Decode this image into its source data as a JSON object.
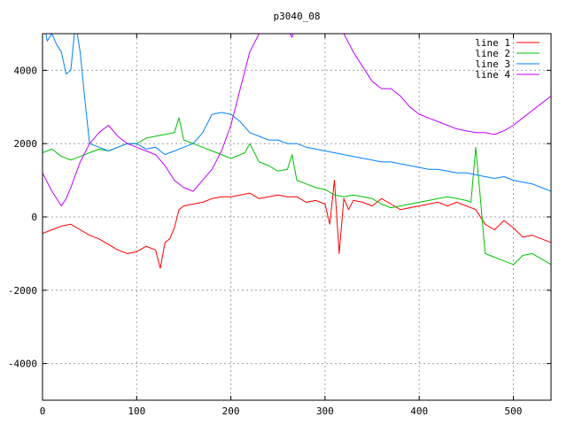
{
  "chart_data": {
    "type": "line",
    "title": "p3040_08",
    "xlim": [
      0,
      540
    ],
    "ylim": [
      -5000,
      5000
    ],
    "grid": true,
    "legend_position": "top-right",
    "x_ticks": [
      0,
      100,
      200,
      300,
      400,
      500
    ],
    "y_ticks": [
      -4000,
      -2000,
      0,
      2000,
      4000
    ],
    "series": [
      {
        "name": "line 1",
        "color": "#ff0000",
        "x": [
          0,
          10,
          20,
          30,
          40,
          50,
          60,
          70,
          80,
          90,
          100,
          110,
          120,
          125,
          130,
          135,
          140,
          145,
          150,
          160,
          170,
          180,
          190,
          200,
          210,
          220,
          230,
          240,
          250,
          260,
          270,
          280,
          290,
          300,
          305,
          310,
          315,
          320,
          325,
          330,
          340,
          350,
          360,
          370,
          380,
          390,
          400,
          410,
          420,
          430,
          440,
          450,
          460,
          470,
          480,
          490,
          500,
          510,
          520,
          530,
          540
        ],
        "y": [
          -450,
          -350,
          -250,
          -200,
          -350,
          -500,
          -600,
          -750,
          -900,
          -1000,
          -950,
          -800,
          -900,
          -1400,
          -700,
          -600,
          -300,
          200,
          300,
          350,
          400,
          500,
          550,
          550,
          600,
          650,
          500,
          550,
          600,
          550,
          550,
          400,
          450,
          350,
          -200,
          1000,
          -1000,
          500,
          200,
          450,
          400,
          300,
          500,
          350,
          200,
          250,
          300,
          350,
          400,
          300,
          400,
          300,
          200,
          -200,
          -350,
          -100,
          -300,
          -550,
          -500,
          -600,
          -700
        ]
      },
      {
        "name": "line 2",
        "color": "#00c000",
        "x": [
          0,
          10,
          20,
          30,
          40,
          50,
          60,
          70,
          80,
          90,
          100,
          110,
          120,
          130,
          140,
          145,
          150,
          160,
          170,
          180,
          190,
          200,
          210,
          215,
          220,
          230,
          240,
          250,
          260,
          265,
          270,
          280,
          290,
          300,
          310,
          320,
          330,
          340,
          350,
          360,
          370,
          380,
          390,
          400,
          410,
          420,
          430,
          440,
          450,
          455,
          460,
          465,
          470,
          480,
          490,
          500,
          510,
          520,
          530,
          540
        ],
        "y": [
          1750,
          1850,
          1650,
          1550,
          1650,
          1750,
          1850,
          1800,
          1900,
          2000,
          2000,
          2150,
          2200,
          2250,
          2300,
          2700,
          2100,
          2000,
          1900,
          1800,
          1700,
          1600,
          1700,
          1750,
          2000,
          1500,
          1400,
          1250,
          1300,
          1700,
          1000,
          900,
          800,
          750,
          600,
          550,
          600,
          550,
          500,
          350,
          250,
          300,
          350,
          400,
          450,
          500,
          550,
          500,
          450,
          400,
          1900,
          500,
          -1000,
          -1100,
          -1200,
          -1300,
          -1050,
          -1000,
          -1150,
          -1300
        ]
      },
      {
        "name": "line 3",
        "color": "#0080ff",
        "x": [
          0,
          5,
          10,
          15,
          20,
          25,
          30,
          35,
          40,
          45,
          50,
          60,
          70,
          80,
          90,
          100,
          110,
          120,
          130,
          140,
          150,
          160,
          170,
          180,
          190,
          200,
          210,
          220,
          230,
          240,
          250,
          260,
          270,
          280,
          290,
          300,
          310,
          320,
          330,
          340,
          350,
          360,
          370,
          380,
          390,
          400,
          410,
          420,
          430,
          440,
          450,
          460,
          470,
          480,
          490,
          500,
          510,
          520,
          530,
          540
        ],
        "y": [
          5500,
          4800,
          5000,
          4700,
          4500,
          3900,
          4000,
          5300,
          4500,
          3200,
          2000,
          1900,
          1800,
          1900,
          2000,
          2000,
          1850,
          1900,
          1700,
          1800,
          1900,
          2000,
          2300,
          2800,
          2850,
          2800,
          2600,
          2300,
          2200,
          2100,
          2100,
          2000,
          2000,
          1900,
          1850,
          1800,
          1750,
          1700,
          1650,
          1600,
          1550,
          1500,
          1500,
          1450,
          1400,
          1350,
          1300,
          1300,
          1250,
          1200,
          1200,
          1150,
          1100,
          1050,
          1100,
          1000,
          950,
          900,
          800,
          700
        ]
      },
      {
        "name": "line 4",
        "color": "#c000ff",
        "x": [
          0,
          10,
          20,
          25,
          30,
          40,
          50,
          60,
          70,
          80,
          90,
          100,
          110,
          120,
          130,
          140,
          150,
          160,
          170,
          180,
          190,
          200,
          210,
          220,
          230,
          240,
          250,
          260,
          265,
          270,
          280,
          290,
          300,
          310,
          320,
          330,
          340,
          350,
          360,
          370,
          380,
          390,
          400,
          410,
          420,
          430,
          440,
          450,
          460,
          470,
          480,
          490,
          500,
          510,
          520,
          530,
          540
        ],
        "y": [
          1200,
          700,
          300,
          500,
          800,
          1500,
          2000,
          2300,
          2500,
          2200,
          2000,
          1900,
          1800,
          1700,
          1400,
          1000,
          800,
          700,
          1000,
          1300,
          1800,
          2500,
          3500,
          4500,
          5000,
          5200,
          5300,
          5100,
          4900,
          5500,
          5600,
          5700,
          5600,
          5400,
          5000,
          4500,
          4100,
          3700,
          3500,
          3500,
          3300,
          3000,
          2800,
          2700,
          2600,
          2500,
          2400,
          2350,
          2300,
          2300,
          2250,
          2350,
          2500,
          2700,
          2900,
          3100,
          3300
        ]
      }
    ]
  }
}
